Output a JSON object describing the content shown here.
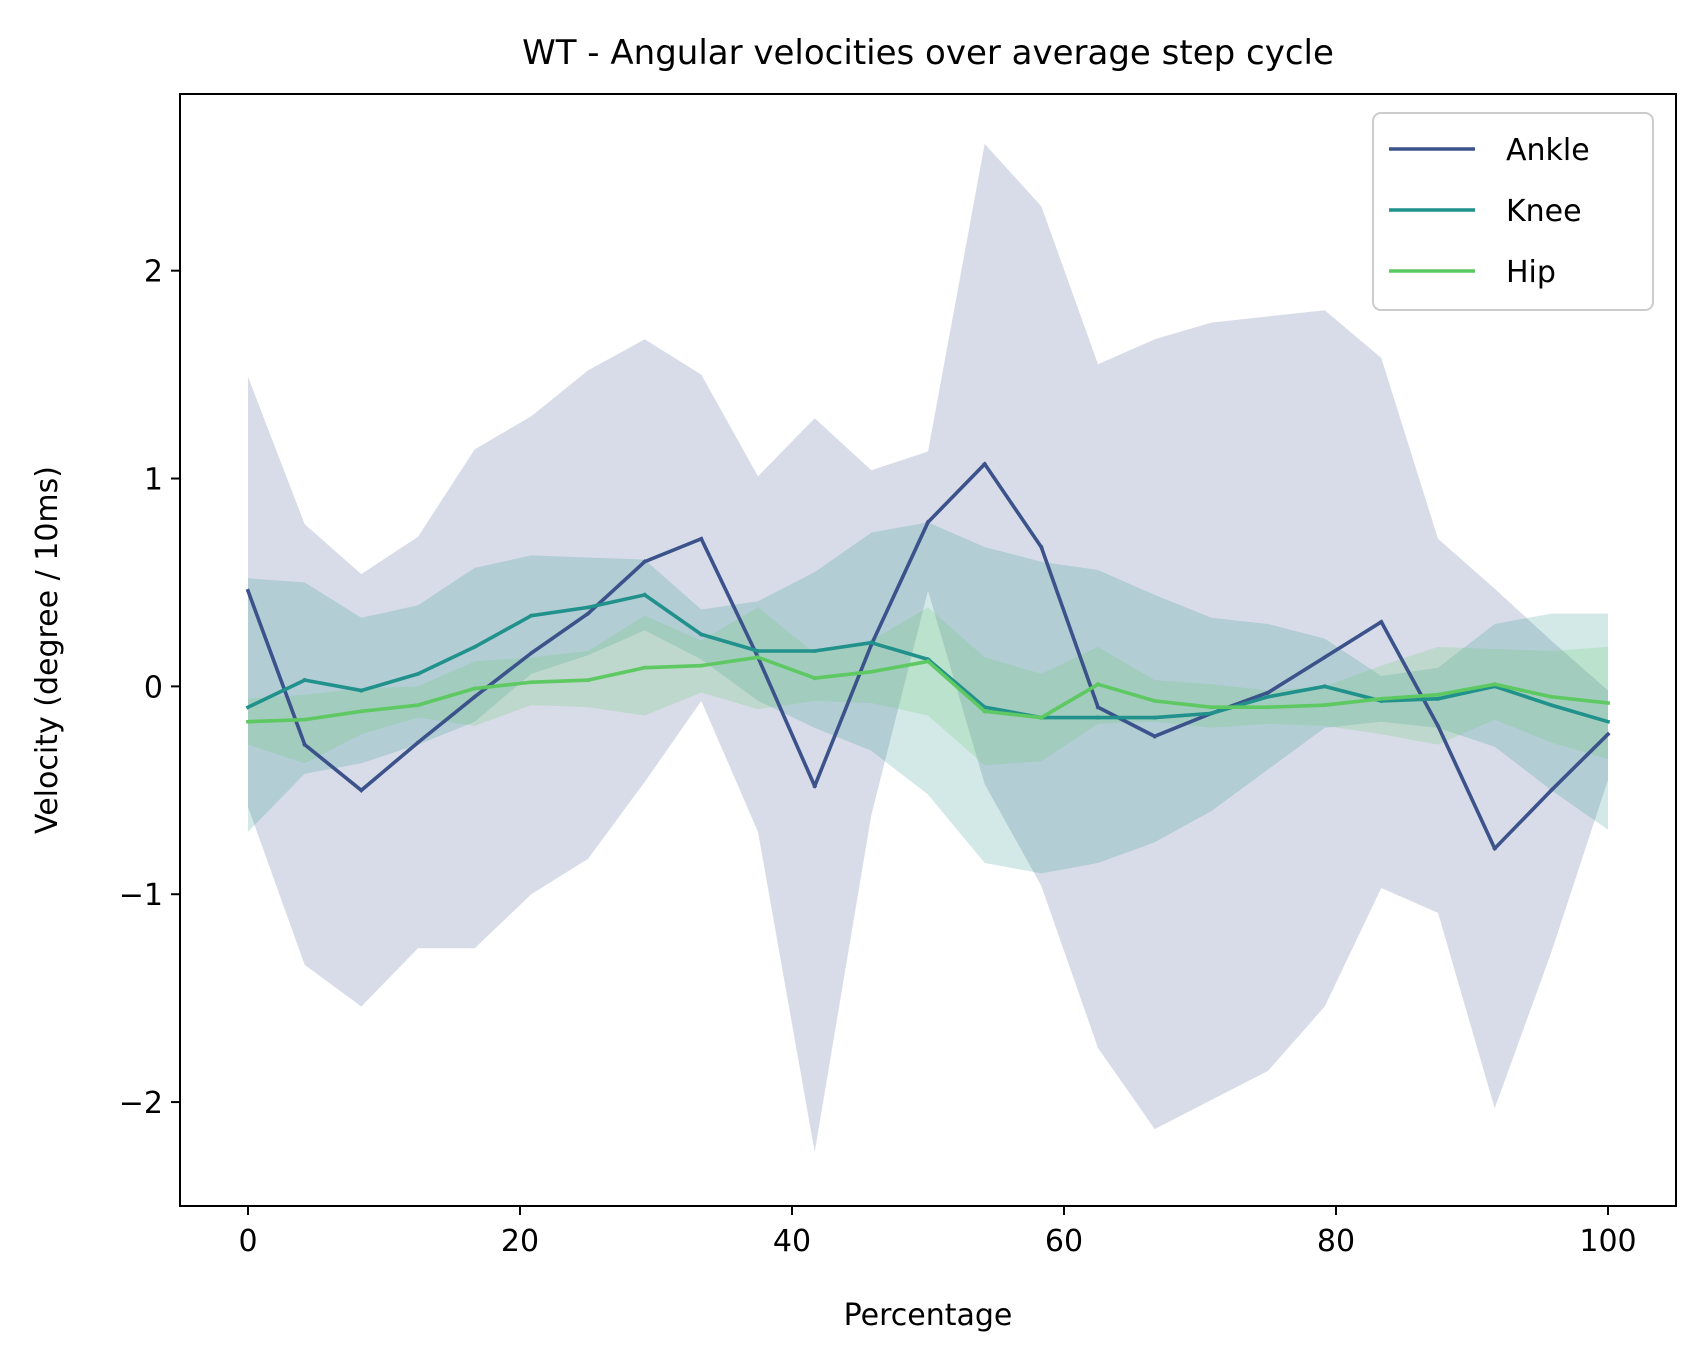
{
  "chart_data": {
    "type": "line",
    "title": "WT - Angular velocities over average step cycle",
    "xlabel": "Percentage",
    "ylabel": "Velocity (degree / 10ms)",
    "xlim": [
      -5,
      105
    ],
    "ylim": [
      -2.5,
      2.85
    ],
    "xticks": [
      0,
      20,
      40,
      60,
      80,
      100
    ],
    "xtick_labels": [
      "0",
      "20",
      "40",
      "60",
      "80",
      "100"
    ],
    "yticks": [
      -2,
      -1,
      0,
      1,
      2
    ],
    "ytick_labels": [
      "−2",
      "−1",
      "0",
      "1",
      "2"
    ],
    "grid": false,
    "legend_position": "top-right",
    "x": [
      0,
      4.17,
      8.33,
      12.5,
      16.67,
      20.83,
      25,
      29.17,
      33.33,
      37.5,
      41.67,
      45.83,
      50,
      54.17,
      58.33,
      62.5,
      66.67,
      70.83,
      75,
      79.17,
      83.33,
      87.5,
      91.67,
      95.83,
      100
    ],
    "series": [
      {
        "name": "Ankle",
        "color": "#3b528b",
        "band_opacity": 0.2,
        "values": [
          0.46,
          -0.28,
          -0.5,
          -0.27,
          -0.05,
          0.16,
          0.35,
          0.6,
          0.71,
          0.14,
          -0.48,
          0.2,
          0.79,
          1.07,
          0.67,
          -0.1,
          -0.24,
          -0.13,
          -0.03,
          0.14,
          0.31,
          -0.19,
          -0.78,
          -0.5,
          -0.23
        ],
        "upper": [
          1.49,
          0.78,
          0.54,
          0.72,
          1.14,
          1.3,
          1.52,
          1.67,
          1.5,
          1.01,
          1.29,
          1.04,
          1.13,
          2.61,
          2.31,
          1.55,
          1.67,
          1.75,
          1.78,
          1.81,
          1.58,
          0.71,
          0.47,
          0.22,
          -0.02
        ],
        "lower": [
          -0.58,
          -1.34,
          -1.54,
          -1.26,
          -1.26,
          -1.0,
          -0.83,
          -0.46,
          -0.07,
          -0.7,
          -2.24,
          -0.62,
          0.46,
          -0.47,
          -0.96,
          -1.74,
          -2.13,
          -1.99,
          -1.85,
          -1.54,
          -0.97,
          -1.09,
          -2.03,
          -1.28,
          -0.45
        ]
      },
      {
        "name": "Knee",
        "color": "#21918c",
        "band_opacity": 0.2,
        "values": [
          -0.1,
          0.03,
          -0.02,
          0.06,
          0.19,
          0.34,
          0.38,
          0.44,
          0.25,
          0.17,
          0.17,
          0.21,
          0.13,
          -0.1,
          -0.15,
          -0.15,
          -0.15,
          -0.13,
          -0.05,
          0.0,
          -0.07,
          -0.06,
          0.0,
          -0.09,
          -0.17
        ],
        "upper": [
          0.52,
          0.5,
          0.33,
          0.39,
          0.57,
          0.63,
          0.62,
          0.61,
          0.37,
          0.41,
          0.55,
          0.74,
          0.79,
          0.67,
          0.6,
          0.56,
          0.44,
          0.33,
          0.3,
          0.23,
          0.05,
          0.09,
          0.3,
          0.35,
          0.35
        ],
        "lower": [
          -0.7,
          -0.42,
          -0.37,
          -0.28,
          -0.17,
          0.06,
          0.15,
          0.27,
          0.13,
          -0.07,
          -0.2,
          -0.31,
          -0.52,
          -0.85,
          -0.9,
          -0.85,
          -0.75,
          -0.6,
          -0.4,
          -0.2,
          -0.17,
          -0.2,
          -0.29,
          -0.5,
          -0.69
        ]
      },
      {
        "name": "Hip",
        "color": "#5ec962",
        "band_opacity": 0.2,
        "values": [
          -0.17,
          -0.16,
          -0.12,
          -0.09,
          -0.01,
          0.02,
          0.03,
          0.09,
          0.1,
          0.14,
          0.04,
          0.07,
          0.12,
          -0.12,
          -0.15,
          0.01,
          -0.07,
          -0.1,
          -0.1,
          -0.09,
          -0.06,
          -0.04,
          0.01,
          -0.05,
          -0.08
        ],
        "upper": [
          -0.06,
          -0.04,
          -0.01,
          0.0,
          0.12,
          0.14,
          0.17,
          0.34,
          0.22,
          0.38,
          0.16,
          0.22,
          0.38,
          0.14,
          0.06,
          0.19,
          0.03,
          0.01,
          -0.02,
          0.0,
          0.1,
          0.19,
          0.18,
          0.17,
          0.19
        ],
        "lower": [
          -0.28,
          -0.37,
          -0.23,
          -0.15,
          -0.19,
          -0.09,
          -0.1,
          -0.14,
          -0.03,
          -0.11,
          -0.07,
          -0.08,
          -0.14,
          -0.38,
          -0.36,
          -0.18,
          -0.17,
          -0.2,
          -0.18,
          -0.19,
          -0.23,
          -0.28,
          -0.16,
          -0.27,
          -0.35
        ]
      }
    ]
  }
}
